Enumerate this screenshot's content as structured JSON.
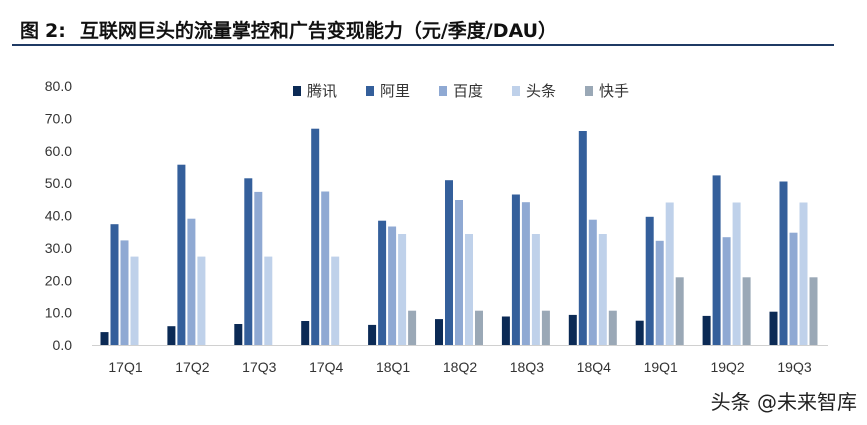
{
  "figure": {
    "label": "图",
    "number": "2:",
    "title": "互联网巨头的流量掌控和广告变现能力（元/季度/DAU）"
  },
  "watermark": "头条 @未来智库",
  "colors": {
    "腾讯": "#0b2a55",
    "阿里": "#345f9b",
    "百度": "#8fa9d3",
    "头条": "#bfd1ea",
    "快手": "#9aa8b6"
  },
  "chart_data": {
    "type": "bar",
    "categories": [
      "17Q1",
      "17Q2",
      "17Q3",
      "17Q4",
      "18Q1",
      "18Q2",
      "18Q3",
      "18Q4",
      "19Q1",
      "19Q2",
      "19Q3"
    ],
    "series": [
      {
        "name": "腾讯",
        "values": [
          4.0,
          5.8,
          6.5,
          7.4,
          6.2,
          8.0,
          8.8,
          9.3,
          7.5,
          9.0,
          10.3
        ]
      },
      {
        "name": "阿里",
        "values": [
          37.3,
          55.7,
          51.5,
          66.8,
          38.4,
          50.9,
          46.5,
          66.1,
          39.6,
          52.4,
          50.5
        ]
      },
      {
        "name": "百度",
        "values": [
          32.3,
          39.0,
          47.3,
          47.4,
          36.6,
          44.8,
          44.1,
          38.7,
          32.2,
          33.3,
          34.7
        ]
      },
      {
        "name": "头条",
        "values": [
          27.3,
          27.3,
          27.3,
          27.3,
          34.3,
          34.3,
          34.3,
          34.3,
          44.0,
          44.0,
          44.0
        ]
      },
      {
        "name": "快手",
        "values": [
          null,
          null,
          null,
          null,
          10.6,
          10.6,
          10.6,
          10.6,
          20.9,
          20.9,
          20.9
        ]
      }
    ],
    "y_ticks": [
      "0.0",
      "10.0",
      "20.0",
      "30.0",
      "40.0",
      "50.0",
      "60.0",
      "70.0",
      "80.0"
    ],
    "ylim": [
      0,
      80
    ],
    "grid": false,
    "legend_position": "top-center"
  }
}
